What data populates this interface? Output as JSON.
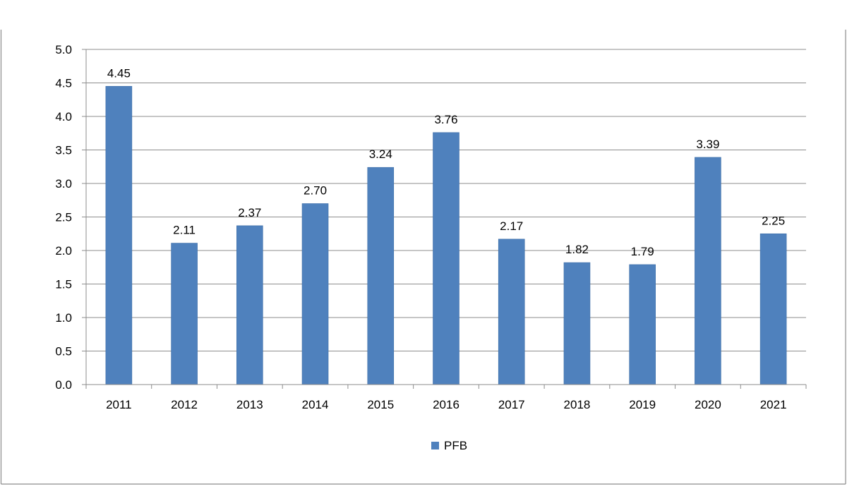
{
  "chart_data": {
    "type": "bar",
    "categories": [
      "2011",
      "2012",
      "2013",
      "2014",
      "2015",
      "2016",
      "2017",
      "2018",
      "2019",
      "2020",
      "2021"
    ],
    "series": [
      {
        "name": "PFB",
        "values": [
          4.45,
          2.11,
          2.37,
          2.7,
          3.24,
          3.76,
          2.17,
          1.82,
          1.79,
          3.39,
          2.25
        ],
        "data_labels": [
          "4.45",
          "2.11",
          "2.37",
          "2.70",
          "3.24",
          "3.76",
          "2.17",
          "1.82",
          "1.79",
          "3.39",
          "2.25"
        ],
        "color": "#4F81BD"
      }
    ],
    "y_ticks": [
      "0.0",
      "0.5",
      "1.0",
      "1.5",
      "2.0",
      "2.5",
      "3.0",
      "3.5",
      "4.0",
      "4.5",
      "5.0"
    ],
    "ylim": [
      0,
      5
    ],
    "y_tick_step": 0.5,
    "grid": true,
    "legend_position": "bottom",
    "title": "",
    "xlabel": "",
    "ylabel": ""
  },
  "colors": {
    "bar": "#4F81BD",
    "grid": "#8c8c8c",
    "axis": "#8c8c8c",
    "frame": "#8c8c8c",
    "text": "#000000"
  }
}
